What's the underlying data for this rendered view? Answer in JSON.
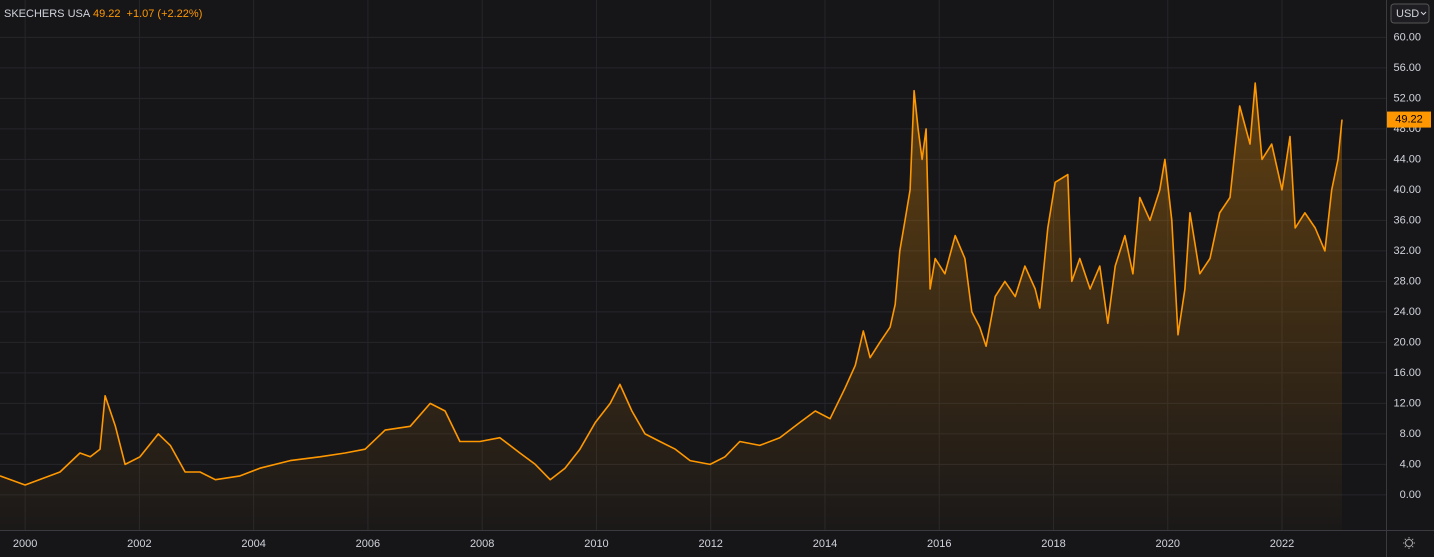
{
  "header": {
    "name": "SKECHERS USA",
    "price": "49.22",
    "change": "+1.07 (+2.22%)",
    "currency": "USD"
  },
  "chart_data": {
    "type": "area",
    "xlim": [
      1999.56,
      2023.82
    ],
    "ylim": [
      -4.6,
      64.9
    ],
    "xticks": [
      2000,
      2002,
      2004,
      2006,
      2008,
      2010,
      2012,
      2014,
      2016,
      2018,
      2020,
      2022
    ],
    "yticks": [
      {
        "value": 0,
        "label": "0.00"
      },
      {
        "value": 4,
        "label": "4.00"
      },
      {
        "value": 8,
        "label": "8.00"
      },
      {
        "value": 12,
        "label": "12.00"
      },
      {
        "value": 16,
        "label": "16.00"
      },
      {
        "value": 20,
        "label": "20.00"
      },
      {
        "value": 24,
        "label": "24.00"
      },
      {
        "value": 28,
        "label": "28.00"
      },
      {
        "value": 32,
        "label": "32.00"
      },
      {
        "value": 36,
        "label": "36.00"
      },
      {
        "value": 40,
        "label": "40.00"
      },
      {
        "value": 44,
        "label": "44.00"
      },
      {
        "value": 48,
        "label": "48.00"
      },
      {
        "value": 52,
        "label": "52.00"
      },
      {
        "value": 56,
        "label": "56.00"
      },
      {
        "value": 60,
        "label": "60.00"
      }
    ],
    "grid": true,
    "x": [
      1999.56,
      2000.0,
      2000.61,
      2000.96,
      2001.14,
      2001.31,
      2001.4,
      2001.58,
      2001.75,
      2002.01,
      2002.33,
      2002.54,
      2002.8,
      2003.06,
      2003.33,
      2003.76,
      2004.11,
      2004.64,
      2005.16,
      2005.6,
      2005.95,
      2006.3,
      2006.74,
      2007.09,
      2007.35,
      2007.61,
      2007.96,
      2008.31,
      2008.66,
      2008.93,
      2009.19,
      2009.45,
      2009.71,
      2009.98,
      2010.24,
      2010.41,
      2010.62,
      2010.85,
      2011.11,
      2011.38,
      2011.64,
      2011.99,
      2012.25,
      2012.51,
      2012.86,
      2013.21,
      2013.56,
      2013.83,
      2014.09,
      2014.35,
      2014.53,
      2014.67,
      2014.79,
      2014.96,
      2015.14,
      2015.23,
      2015.31,
      2015.4,
      2015.49,
      2015.56,
      2015.63,
      2015.7,
      2015.77,
      2015.84,
      2015.93,
      2016.1,
      2016.28,
      2016.45,
      2016.57,
      2016.71,
      2016.82,
      2016.98,
      2017.15,
      2017.33,
      2017.5,
      2017.68,
      2017.76,
      2017.9,
      2018.03,
      2018.25,
      2018.32,
      2018.46,
      2018.64,
      2018.81,
      2018.95,
      2019.08,
      2019.25,
      2019.39,
      2019.51,
      2019.69,
      2019.86,
      2019.95,
      2020.07,
      2020.18,
      2020.3,
      2020.39,
      2020.56,
      2020.74,
      2020.91,
      2021.09,
      2021.26,
      2021.44,
      2021.53,
      2021.65,
      2021.82,
      2022.0,
      2022.14,
      2022.23,
      2022.4,
      2022.58,
      2022.75,
      2022.87,
      2022.98,
      2023.05
    ],
    "series": [
      {
        "name": "SKECHERS USA",
        "color": "#ff9800",
        "values": [
          2.5,
          1.3,
          3,
          5.5,
          5,
          6,
          13,
          9,
          4,
          5,
          8,
          6.5,
          3,
          3,
          2,
          2.5,
          3.5,
          4.5,
          5,
          5.5,
          6,
          8.5,
          9,
          12,
          11,
          7,
          7,
          7.5,
          5.5,
          4,
          2,
          3.5,
          6,
          9.5,
          12,
          14.5,
          11,
          8,
          7,
          6,
          4.5,
          4,
          5,
          7,
          6.5,
          7.5,
          9.5,
          11,
          10,
          14,
          17,
          21.5,
          18,
          20,
          22,
          25,
          32,
          36,
          40,
          53,
          48,
          44,
          48,
          27,
          31,
          29,
          34,
          31,
          24,
          22,
          19.5,
          26,
          28,
          26,
          30,
          27,
          24.5,
          35,
          41,
          42,
          28,
          31,
          27,
          30,
          22.5,
          30,
          34,
          29,
          39,
          36,
          40,
          44,
          36,
          21,
          27,
          37,
          29,
          31,
          37,
          39,
          51,
          46,
          54,
          44,
          46,
          40,
          47,
          35,
          37,
          35,
          32,
          40,
          44,
          49.22
        ]
      }
    ]
  }
}
